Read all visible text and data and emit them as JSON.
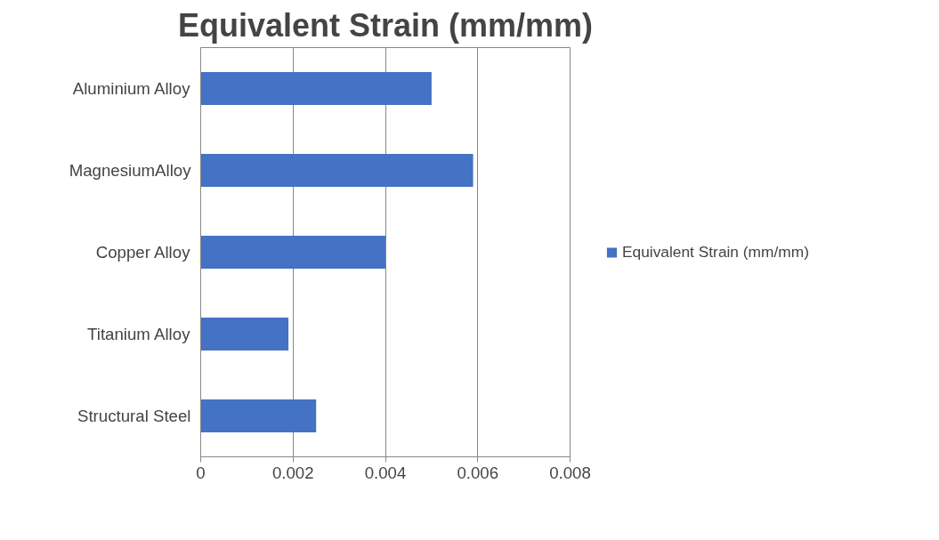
{
  "chart_data": {
    "type": "bar",
    "orientation": "horizontal",
    "title": "Equivalent Strain (mm/mm)",
    "categories": [
      "Aluminium Alloy",
      "MagnesiumAlloy",
      "Copper Alloy",
      "Titanium Alloy",
      "Structural Steel"
    ],
    "series": [
      {
        "name": "Equivalent Strain (mm/mm)",
        "color": "#4472c4",
        "values": [
          0.005,
          0.0059,
          0.004,
          0.0019,
          0.0025
        ]
      }
    ],
    "xlim": [
      0,
      0.008
    ],
    "xticks": [
      0,
      0.002,
      0.004,
      0.006,
      0.008
    ],
    "grid": "x",
    "legend": "right"
  }
}
